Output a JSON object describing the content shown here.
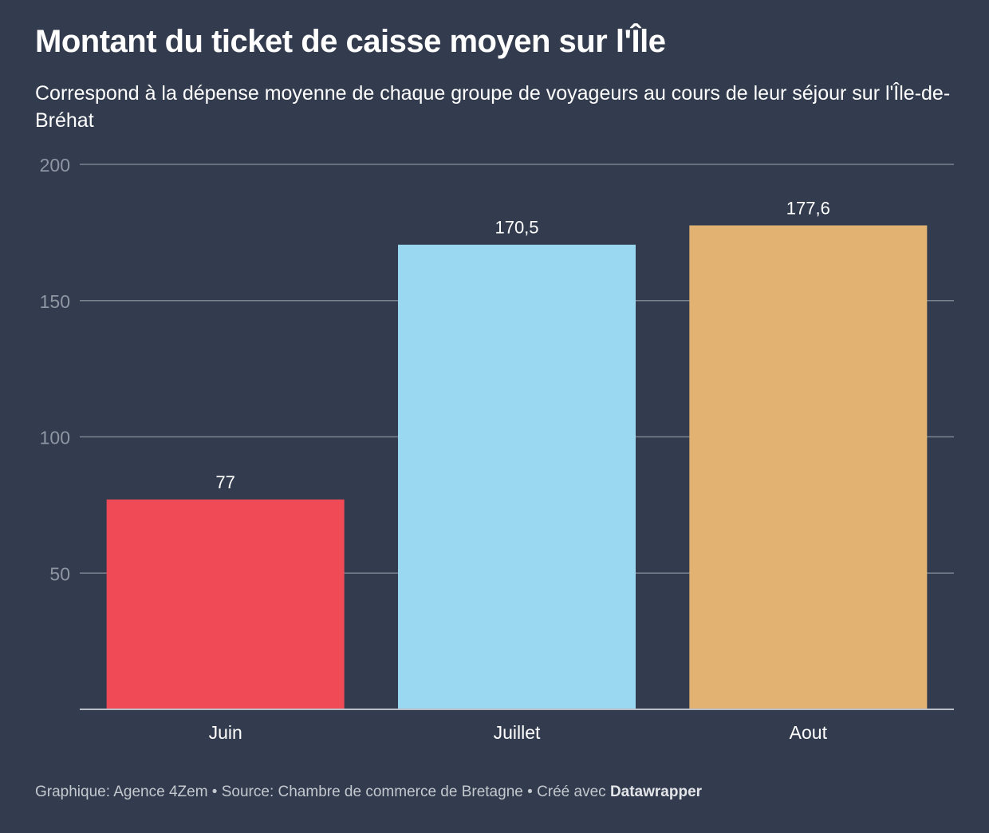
{
  "title": "Montant du ticket de caisse moyen sur l'Île",
  "subtitle": "Correspond à la dépense moyenne de chaque groupe de voyageurs au cours de leur séjour sur l'Île-de-Bréhat",
  "footer": {
    "graphic": "Graphique: Agence 4Zem",
    "separator": " • ",
    "source": "Source: Chambre de commerce de Bretagne",
    "created": "Créé avec ",
    "brand": "Datawrapper"
  },
  "colors": {
    "background": "#333c4e",
    "gridline": "#7b8290",
    "axis": "#b9bdc5",
    "tick_label": "#8f96a3"
  },
  "chart_data": {
    "type": "bar",
    "categories": [
      "Juin",
      "Juillet",
      "Aout"
    ],
    "values": [
      77,
      170.5,
      177.6
    ],
    "value_labels": [
      "77",
      "170,5",
      "177,6"
    ],
    "bar_colors": [
      "#ef4a56",
      "#9ad8f2",
      "#e2b273"
    ],
    "yticks": [
      50,
      100,
      150,
      200
    ],
    "ylim": [
      0,
      200
    ],
    "grid": true,
    "legend": "none"
  }
}
